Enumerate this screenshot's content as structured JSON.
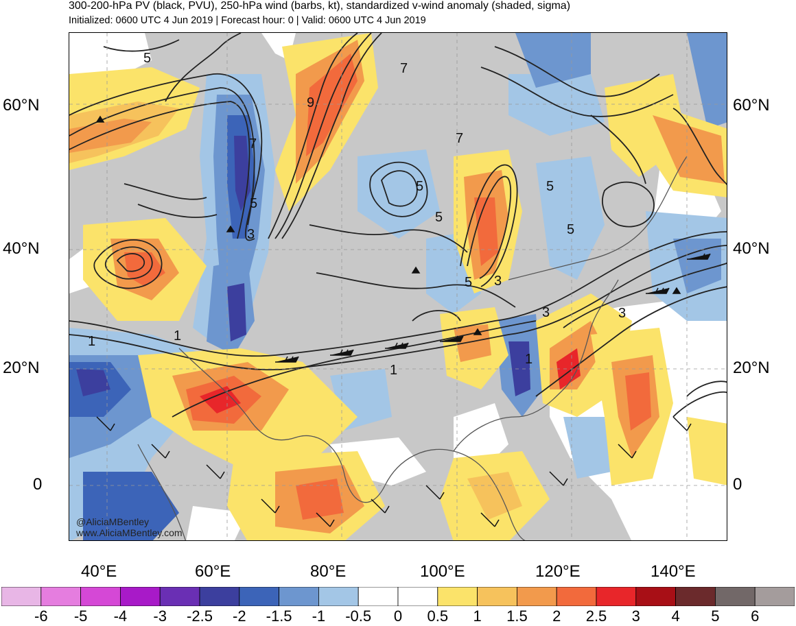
{
  "title": {
    "line1": "300-200-hPa PV (black, PVU), 250-hPa wind (barbs, kt), standardized v-wind anomaly (shaded, sigma)",
    "line2": "Initialized: 0600 UTC 4 Jun 2019 | Forecast hour: 0 | Valid: 0600 UTC 4 Jun 2019"
  },
  "map": {
    "lat_labels": [
      "60°N",
      "40°N",
      "20°N",
      "0"
    ],
    "lon_labels": [
      "40°E",
      "60°E",
      "80°E",
      "100°E",
      "120°E",
      "140°E"
    ],
    "contour_labels": [
      "5",
      "5",
      "7",
      "9",
      "7",
      "5",
      "3",
      "5",
      "5",
      "5",
      "3",
      "5",
      "3",
      "1",
      "1",
      "1",
      "1",
      "3",
      "7"
    ],
    "credit_handle": "@AliciaMBentley",
    "credit_url": "www.AliciaMBentley.com"
  },
  "colorbar": {
    "labels": [
      "-6",
      "-5",
      "-4",
      "-3",
      "-2.5",
      "-2",
      "-1.5",
      "-1",
      "-0.5",
      "0",
      "0.5",
      "1",
      "1.5",
      "2",
      "2.5",
      "3",
      "4",
      "5",
      "6"
    ],
    "colors": [
      "#e8b6e6",
      "#e57ddf",
      "#d548d6",
      "#a81ac8",
      "#6a2fb4",
      "#3c3f9e",
      "#3c64b8",
      "#6d96cf",
      "#a3c6e6",
      "#ffffff",
      "#ffffff",
      "#fbe36a",
      "#f6c25c",
      "#f29a4c",
      "#f26a3c",
      "#e8262a",
      "#a80f16",
      "#6b2a2c",
      "#726868",
      "#a49c9c"
    ]
  },
  "colors": {
    "background_gray": "#c8c8c8",
    "contour": "#222222"
  }
}
